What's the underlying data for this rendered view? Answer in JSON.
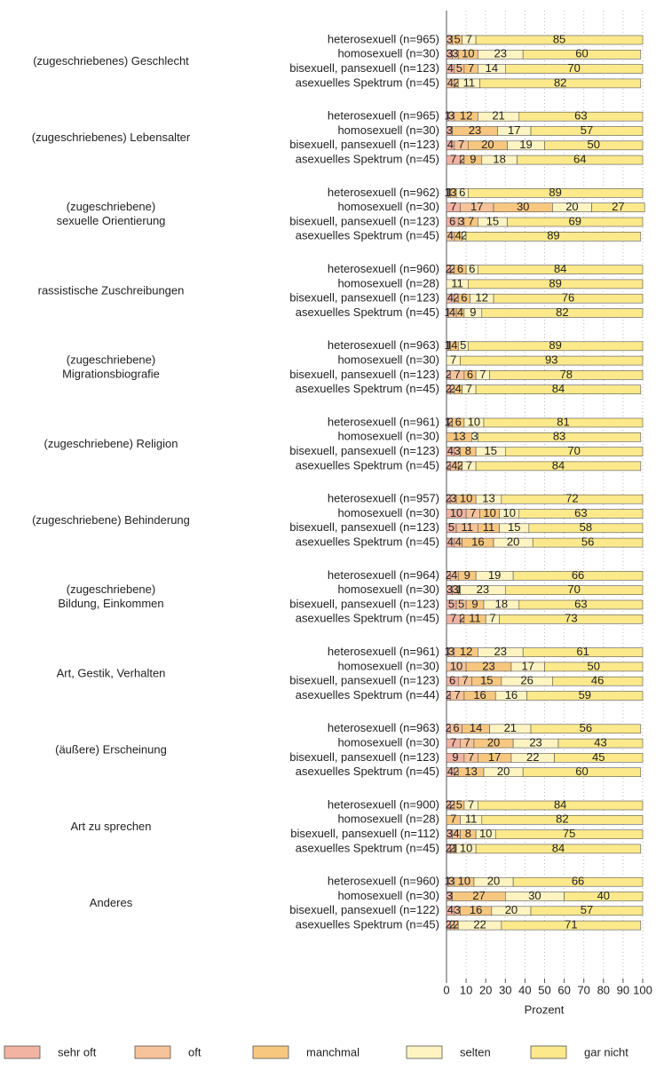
{
  "chart_data": {
    "type": "bar",
    "orientation": "horizontal",
    "stacked": true,
    "xlabel": "Prozent",
    "xlim": [
      0,
      100
    ],
    "xticks": [
      0,
      10,
      20,
      30,
      40,
      50,
      60,
      70,
      80,
      90,
      100
    ],
    "grid": true,
    "legend": "bottom",
    "groups": [
      "(zugeschriebenes) Geschlecht",
      "(zugeschriebenes) Lebensalter",
      "(zugeschriebene)\nsexuelle Orientierung",
      "rassistische Zuschreibungen",
      "(zugeschriebene)\nMigrationsbiografie",
      "(zugeschriebene) Religion",
      "(zugeschriebene) Behinderung",
      "(zugeschriebene)\nBildung, Einkommen",
      "Art, Gestik, Verhalten",
      "(äußere) Erscheinung",
      "Art zu sprechen",
      "Anderes"
    ],
    "categories": [
      "heterosexuell (n=965)",
      "homosexuell (n=30)",
      "bisexuell, pansexuell (n=123)",
      "asexuelles Spektrum (n=45)",
      "heterosexuell (n=965)",
      "homosexuell (n=30)",
      "bisexuell, pansexuell (n=123)",
      "asexuelles Spektrum (n=45)",
      "heterosexuell (n=962)",
      "homosexuell (n=30)",
      "bisexuell, pansexuell (n=123)",
      "asexuelles Spektrum (n=45)",
      "heterosexuell (n=960)",
      "homosexuell (n=28)",
      "bisexuell, pansexuell (n=123)",
      "asexuelles Spektrum (n=45)",
      "heterosexuell (n=963)",
      "homosexuell (n=30)",
      "bisexuell, pansexuell (n=123)",
      "asexuelles Spektrum (n=45)",
      "heterosexuell (n=961)",
      "homosexuell (n=30)",
      "bisexuell, pansexuell (n=123)",
      "asexuelles Spektrum (n=45)",
      "heterosexuell (n=957)",
      "homosexuell (n=30)",
      "bisexuell, pansexuell (n=123)",
      "asexuelles Spektrum (n=45)",
      "heterosexuell (n=964)",
      "homosexuell (n=30)",
      "bisexuell, pansexuell (n=123)",
      "asexuelles Spektrum (n=45)",
      "heterosexuell (n=961)",
      "homosexuell (n=30)",
      "bisexuell, pansexuell (n=123)",
      "asexuelles Spektrum (n=44)",
      "heterosexuell (n=963)",
      "homosexuell (n=30)",
      "bisexuell, pansexuell (n=123)",
      "asexuelles Spektrum (n=45)",
      "heterosexuell (n=900)",
      "homosexuell (n=28)",
      "bisexuell, pansexuell (n=112)",
      "asexuelles Spektrum (n=45)",
      "heterosexuell (n=960)",
      "homosexuell (n=30)",
      "bisexuell, pansexuell (n=122)",
      "asexuelles Spektrum (n=45)"
    ],
    "series": [
      {
        "name": "sehr oft",
        "color": "#f2b3a3",
        "values": [
          0,
          3,
          4,
          0,
          1,
          3,
          4,
          7,
          1,
          7,
          6,
          0,
          2,
          0,
          4,
          1,
          1,
          0,
          2,
          2,
          1,
          0,
          4,
          2,
          2,
          10,
          5,
          4,
          2,
          3,
          5,
          7,
          1,
          0,
          6,
          2,
          2,
          7,
          9,
          4,
          2,
          0,
          3,
          2,
          1,
          3,
          4,
          2
        ]
      },
      {
        "name": "oft",
        "color": "#f7c39a",
        "values": [
          3,
          3,
          5,
          4,
          3,
          0,
          7,
          2,
          1,
          17,
          3,
          4,
          2,
          0,
          2,
          4,
          1,
          0,
          7,
          2,
          2,
          0,
          3,
          4,
          3,
          7,
          11,
          4,
          4,
          3,
          5,
          2,
          3,
          10,
          7,
          7,
          6,
          7,
          7,
          2,
          2,
          0,
          4,
          2,
          3,
          0,
          3,
          2
        ]
      },
      {
        "name": "manchmal",
        "color": "#f8c77f",
        "values": [
          5,
          10,
          7,
          2,
          12,
          23,
          20,
          9,
          3,
          30,
          7,
          4,
          6,
          0,
          6,
          4,
          4,
          0,
          6,
          4,
          6,
          13,
          8,
          2,
          10,
          10,
          11,
          16,
          9,
          1,
          9,
          11,
          12,
          23,
          15,
          16,
          14,
          20,
          17,
          13,
          5,
          7,
          8,
          1,
          10,
          27,
          16,
          2
        ]
      },
      {
        "name": "selten",
        "color": "#fdf4c2",
        "values": [
          7,
          23,
          14,
          11,
          21,
          17,
          19,
          18,
          6,
          20,
          15,
          2,
          6,
          11,
          12,
          9,
          5,
          7,
          7,
          7,
          10,
          3,
          15,
          7,
          13,
          10,
          15,
          20,
          19,
          23,
          18,
          7,
          23,
          17,
          26,
          16,
          21,
          23,
          22,
          20,
          7,
          11,
          10,
          10,
          20,
          30,
          20,
          22
        ]
      },
      {
        "name": "gar nicht",
        "color": "#fbe98b",
        "values": [
          85,
          60,
          70,
          82,
          63,
          57,
          50,
          64,
          89,
          27,
          69,
          89,
          84,
          89,
          76,
          82,
          89,
          93,
          78,
          84,
          81,
          83,
          70,
          84,
          72,
          63,
          58,
          56,
          66,
          70,
          63,
          73,
          61,
          50,
          46,
          59,
          56,
          43,
          45,
          60,
          84,
          82,
          75,
          84,
          66,
          40,
          57,
          71
        ]
      }
    ]
  }
}
